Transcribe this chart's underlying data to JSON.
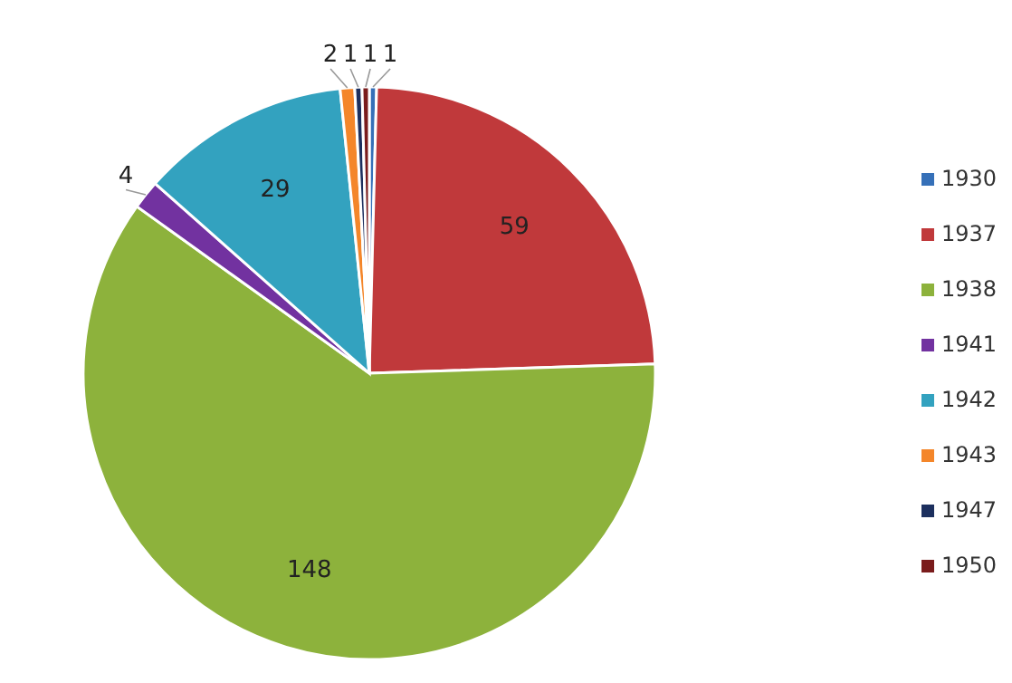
{
  "chart_data": {
    "type": "pie",
    "categories": [
      "1930",
      "1937",
      "1938",
      "1941",
      "1942",
      "1943",
      "1947",
      "1950"
    ],
    "values": [
      1,
      59,
      148,
      4,
      29,
      2,
      1,
      1
    ],
    "colors": [
      "#3670b8",
      "#c0393b",
      "#8db23c",
      "#7232a0",
      "#33a2bf",
      "#f4862a",
      "#1c2f5e",
      "#7a1c1c"
    ],
    "data_labels": true,
    "legend": "right"
  }
}
